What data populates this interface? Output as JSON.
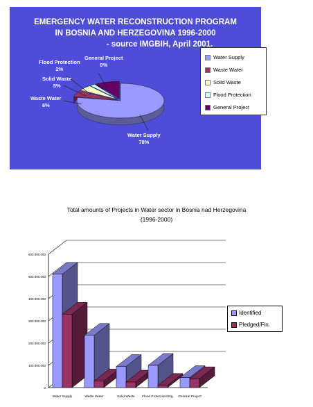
{
  "colors": {
    "panel_bg": "#4d4dd9",
    "water_supply": "#9999ff",
    "waste_water": "#993366",
    "solid_waste": "#ffffcc",
    "flood_protection": "#ccffff",
    "general_project": "#660066",
    "bar_identified": "#9999ff",
    "bar_pledged": "#993366"
  },
  "chart_data": [
    {
      "type": "pie",
      "title_lines": [
        "EMERGENCY WATER RECONSTRUCTION PROGRAM",
        "IN BOSNIA AND HERZEGOVINA  1996-2000",
        "- source IMGBIH, April 2001."
      ],
      "slices": [
        {
          "name": "Water Supply",
          "value": 78,
          "label": "78%"
        },
        {
          "name": "Waste Water",
          "value": 6,
          "label": "6%"
        },
        {
          "name": "Solid Waste",
          "value": 5,
          "label": "5%"
        },
        {
          "name": "Flood Protection",
          "value": 2,
          "label": "2%"
        },
        {
          "name": "General Project",
          "value": 9,
          "label": "9%"
        }
      ],
      "legend": [
        "Water Supply",
        "Waste Water",
        "Solid Waste",
        "Flood Protection",
        "General Project"
      ],
      "legend_position": "right"
    },
    {
      "type": "bar",
      "title_lines": [
        "Total amounts of Projects in Water sector in Bosnia nad Herzegovina",
        "(1996-2000)"
      ],
      "categories": [
        "Water Supply",
        "Waste Water",
        "Solid Waste",
        "Flood Protection/Irrig.",
        "General Project"
      ],
      "series": [
        {
          "name": "Identified",
          "values": [
            510000000,
            235000000,
            95000000,
            100000000,
            45000000
          ]
        },
        {
          "name": "Pledged/Fin.",
          "values": [
            330000000,
            30000000,
            25000000,
            10000000,
            40000000
          ]
        }
      ],
      "ylim": [
        0,
        600000000
      ],
      "ytick_labels": [
        "0",
        "100.000.000",
        "200.000.000",
        "300.000.000",
        "400.000.000",
        "500.000.000",
        "600.000.000"
      ],
      "grid": true,
      "legend_position": "right",
      "style": "3d-columns"
    }
  ]
}
